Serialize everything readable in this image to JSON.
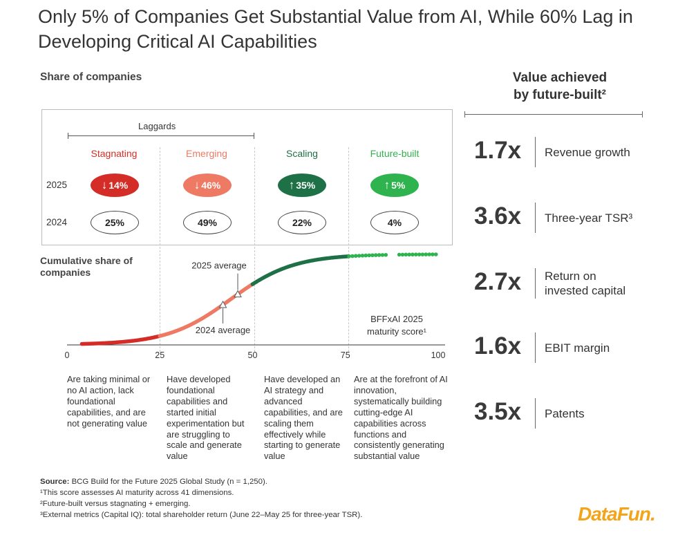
{
  "title": "Only 5% of Companies Get Substantial Value from AI, While 60% Lag in Developing Critical AI Capabilities",
  "share_label": "Share of companies",
  "laggards_label": "Laggards",
  "categories": [
    {
      "name": "Stagnating",
      "color": "#d42d27",
      "y2025": "14%",
      "dir2025": "down",
      "y2024": "25%"
    },
    {
      "name": "Emerging",
      "color": "#ee7a63",
      "y2025": "46%",
      "dir2025": "down",
      "y2024": "49%"
    },
    {
      "name": "Scaling",
      "color": "#1e7046",
      "y2025": "35%",
      "dir2025": "up",
      "y2024": "22%"
    },
    {
      "name": "Future-built",
      "color": "#2fb34f",
      "y2025": "5%",
      "dir2025": "up",
      "y2024": "4%"
    }
  ],
  "years": [
    "2025",
    "2024"
  ],
  "cumulative_label": "Cumulative share of companies",
  "chart_data": {
    "type": "scatter",
    "title": "Cumulative share of companies",
    "xlabel": "BFFxAI 2025 maturity score¹",
    "xlim": [
      0,
      100
    ],
    "ylim": [
      0,
      1
    ],
    "x_ticks": [
      "0",
      "25",
      "50",
      "75",
      "100"
    ],
    "annotations": {
      "avg2025_label": "2025 average",
      "avg2025_x": 46,
      "avg2024_label": "2024 average",
      "avg2024_x": 42
    },
    "segments": [
      {
        "name": "Stagnating",
        "range": [
          4,
          25
        ],
        "color": "#d42d27"
      },
      {
        "name": "Emerging",
        "range": [
          25,
          50
        ],
        "color": "#ee7a63"
      },
      {
        "name": "Scaling",
        "range": [
          50,
          76
        ],
        "color": "#1e7046"
      },
      {
        "name": "Future-built",
        "range": [
          76,
          100
        ],
        "color": "#2fb34f"
      }
    ]
  },
  "descriptions": [
    "Are taking minimal or no AI action, lack foundational capabilities, and are not generating value",
    "Have developed foundational capabilities and started initial experimentation but are struggling to scale and generate value",
    "Have developed an AI strategy and advanced capabilities, and are scaling them effectively while starting to generate value",
    "Are at the forefront of AI innovation, systematically building cutting-edge AI capabilities across functions and consistently generating substantial value"
  ],
  "right": {
    "title_line1": "Value achieved",
    "title_line2": "by future-built²",
    "metrics": [
      {
        "value": "1.7x",
        "label1": "Revenue growth",
        "label2": ""
      },
      {
        "value": "3.6x",
        "label1": "Three-year TSR³",
        "label2": ""
      },
      {
        "value": "2.7x",
        "label1": "Return on",
        "label2": "invested capital"
      },
      {
        "value": "1.6x",
        "label1": "EBIT margin",
        "label2": ""
      },
      {
        "value": "3.5x",
        "label1": "Patents",
        "label2": ""
      }
    ]
  },
  "footer": {
    "source_label": "Source:",
    "source_text": " BCG Build for the Future 2025 Global Study (n = 1,250).",
    "note1": "¹This score assesses AI maturity across 41 dimensions.",
    "note2": "²Future-built versus stagnating + emerging.",
    "note3": "³External metrics (Capital IQ): total shareholder return (June 22–May 25 for three-year TSR)."
  },
  "logo": "DataFun."
}
